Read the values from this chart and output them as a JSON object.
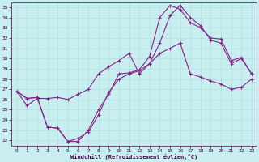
{
  "xlabel": "Windchill (Refroidissement éolien,°C)",
  "xlim": [
    -0.5,
    23.5
  ],
  "ylim": [
    21.5,
    35.5
  ],
  "xticks": [
    0,
    1,
    2,
    3,
    4,
    5,
    6,
    7,
    8,
    9,
    10,
    11,
    12,
    13,
    14,
    15,
    16,
    17,
    18,
    19,
    20,
    21,
    22,
    23
  ],
  "yticks": [
    22,
    23,
    24,
    25,
    26,
    27,
    28,
    29,
    30,
    31,
    32,
    33,
    34,
    35
  ],
  "line_color": "#882288",
  "background_color": "#c8eef0",
  "line1_x": [
    0,
    1,
    2,
    3,
    4,
    5,
    6,
    7,
    8,
    9,
    10,
    11,
    12,
    13,
    14,
    15,
    16,
    17,
    18,
    19,
    20,
    21,
    22,
    23
  ],
  "line1_y": [
    26.8,
    25.4,
    26.1,
    26.1,
    26.2,
    26.0,
    26.5,
    27.0,
    28.5,
    29.2,
    29.8,
    30.5,
    28.5,
    29.5,
    31.5,
    34.2,
    35.2,
    34.0,
    33.2,
    31.8,
    31.5,
    29.5,
    30.0,
    28.5
  ],
  "line2_x": [
    0,
    1,
    2,
    3,
    4,
    5,
    6,
    7,
    8,
    9,
    10,
    11,
    12,
    13,
    14,
    15,
    16,
    17,
    18,
    19,
    20,
    21,
    22,
    23
  ],
  "line2_y": [
    26.8,
    26.1,
    26.2,
    23.3,
    23.2,
    21.9,
    22.2,
    22.8,
    24.5,
    26.7,
    28.0,
    28.5,
    28.8,
    29.5,
    30.5,
    31.0,
    31.5,
    28.5,
    28.2,
    27.8,
    27.5,
    27.0,
    27.2,
    28.0
  ],
  "line3_x": [
    0,
    1,
    2,
    3,
    4,
    5,
    6,
    7,
    8,
    9,
    10,
    11,
    12,
    13,
    14,
    15,
    16,
    17,
    18,
    19,
    20,
    21,
    22,
    23
  ],
  "line3_y": [
    26.8,
    26.1,
    26.2,
    23.3,
    23.2,
    21.9,
    21.9,
    23.0,
    25.0,
    26.5,
    28.5,
    28.6,
    28.9,
    30.2,
    34.0,
    35.2,
    34.8,
    33.5,
    33.0,
    32.0,
    31.9,
    29.8,
    30.1,
    28.5
  ]
}
